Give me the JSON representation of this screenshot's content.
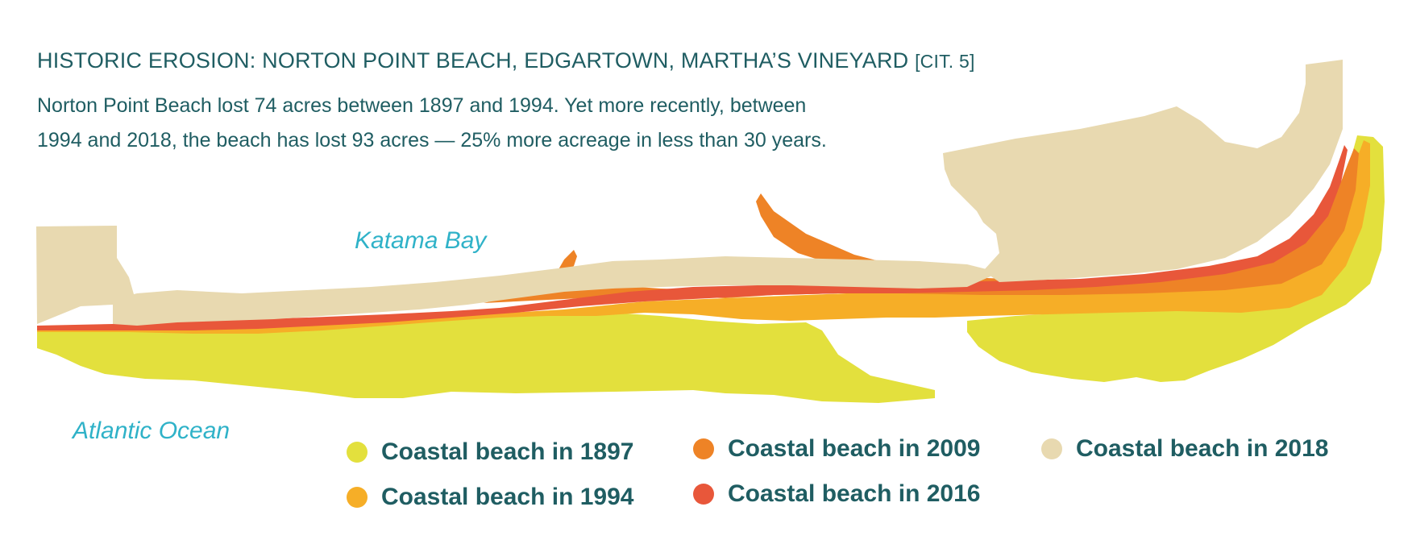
{
  "header": {
    "title": "HISTORIC EROSION: NORTON POINT BEACH, EDGARTOWN, MARTHA’S VINEYARD",
    "citation": "[CIT. 5]",
    "description_line1": "Norton Point Beach lost 74 acres between 1897 and 1994. Yet more recently, between",
    "description_line2": "1994 and 2018, the beach has lost 93 acres — 25% more acreage in less than 30 years."
  },
  "map": {
    "labels": {
      "bay": "Katama Bay",
      "ocean": "Atlantic Ocean"
    }
  },
  "legend": [
    {
      "label": "Coastal beach in 1897",
      "color": "#e3e03d"
    },
    {
      "label": "Coastal beach in 1994",
      "color": "#f6ae27"
    },
    {
      "label": "Coastal beach in 2009",
      "color": "#ee8326"
    },
    {
      "label": "Coastal beach in 2016",
      "color": "#e8573a"
    },
    {
      "label": "Coastal beach in 2018",
      "color": "#e8d9b0"
    }
  ]
}
